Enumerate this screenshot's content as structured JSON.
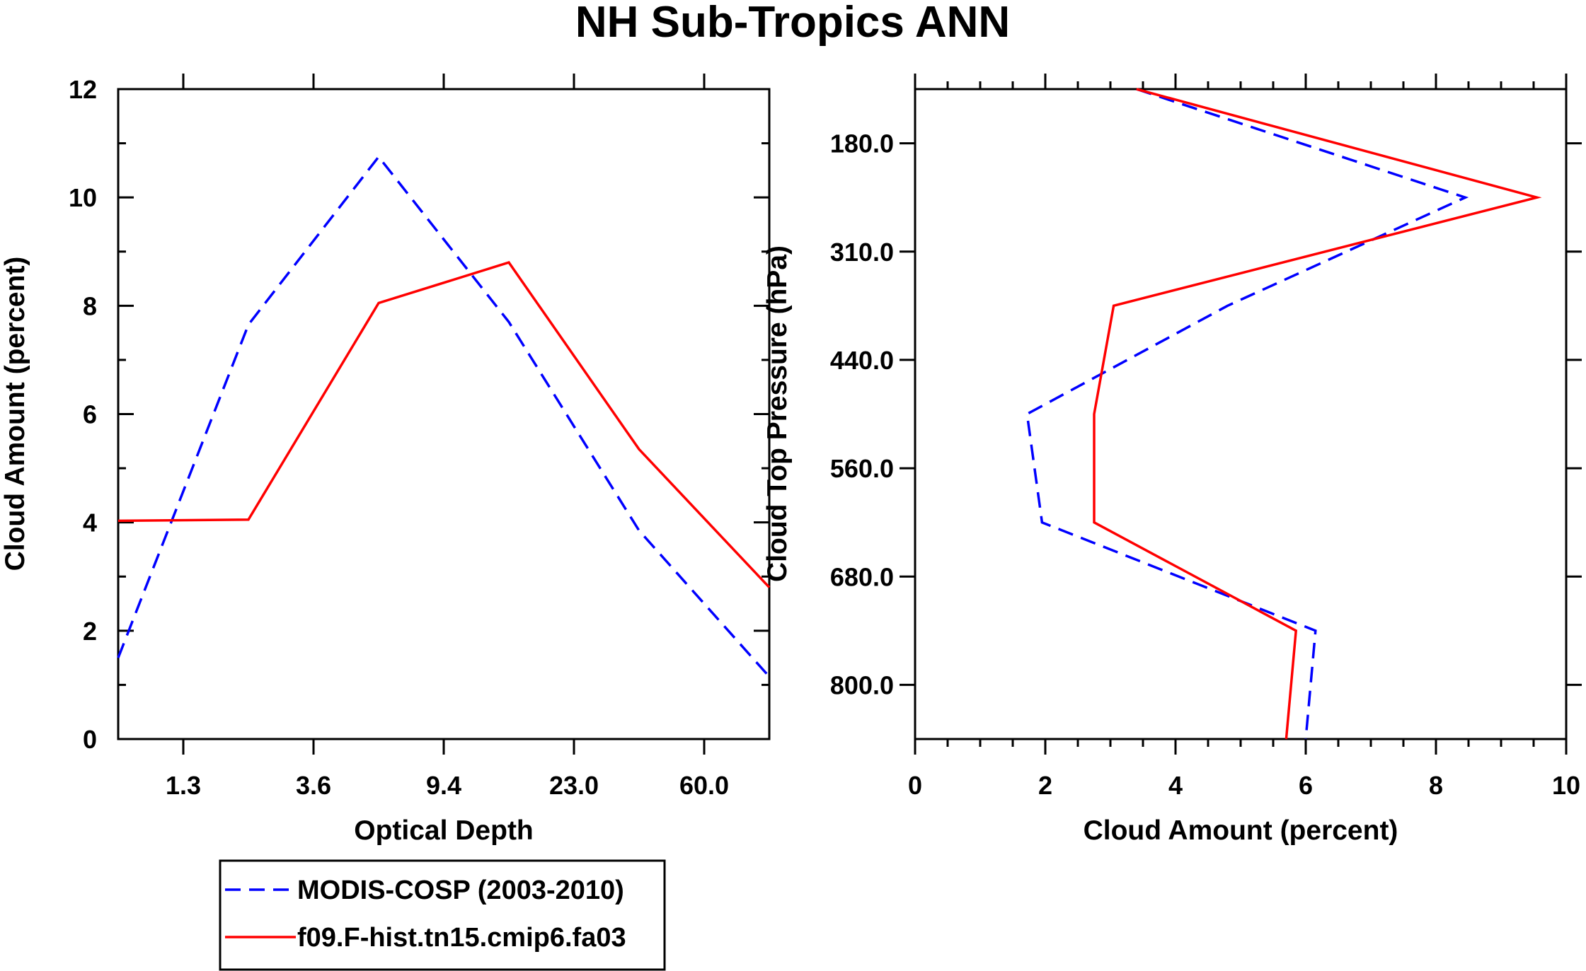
{
  "title": "NH Sub-Tropics ANN",
  "colors": {
    "modis": "#0000ff",
    "model": "#ff0000",
    "axis": "#000000"
  },
  "chart_data": [
    {
      "type": "line",
      "xlabel": "Optical Depth",
      "ylabel": "Cloud Amount (percent)",
      "ylim": [
        0,
        12
      ],
      "yticks": [
        "0",
        "2",
        "4",
        "6",
        "8",
        "10",
        "12"
      ],
      "xlim": [
        0,
        10
      ],
      "xtick_labels": [
        "1.3",
        "3.6",
        "9.4",
        "23.0",
        "60.0"
      ],
      "xtick_positions": [
        1,
        3,
        5,
        7,
        9
      ],
      "x": [
        0,
        2,
        4,
        6,
        8,
        10
      ],
      "series": [
        {
          "name": "MODIS-COSP (2003-2010)",
          "style": "dashed",
          "values": [
            1.5,
            7.65,
            10.75,
            7.7,
            3.85,
            1.15
          ]
        },
        {
          "name": "f09.F-hist.tn15.cmip6.fa03",
          "style": "solid",
          "values": [
            4.03,
            4.05,
            8.05,
            8.8,
            5.35,
            2.8
          ]
        }
      ]
    },
    {
      "type": "line",
      "xlabel": "Cloud Amount (percent)",
      "ylabel": "Cloud Top Pressure (hPa)",
      "xlim": [
        0,
        10
      ],
      "xticks": [
        "0",
        "2",
        "4",
        "6",
        "8",
        "10"
      ],
      "ylim": [
        0,
        12
      ],
      "ytick_labels": [
        "180.0",
        "310.0",
        "440.0",
        "560.0",
        "680.0",
        "800.0"
      ],
      "ytick_positions": [
        1,
        3,
        5,
        7,
        9,
        11
      ],
      "levels": [
        0,
        2,
        4,
        6,
        8,
        10,
        12
      ],
      "series": [
        {
          "name": "MODIS-COSP (2003-2010)",
          "style": "dashed",
          "values": [
            3.4,
            8.45,
            4.8,
            1.72,
            1.95,
            6.15,
            6.0
          ]
        },
        {
          "name": "f09.F-hist.tn15.cmip6.fa03",
          "style": "solid",
          "values": [
            3.4,
            9.55,
            3.05,
            2.75,
            2.75,
            5.85,
            5.7
          ]
        }
      ]
    }
  ],
  "legend": [
    {
      "label": "MODIS-COSP (2003-2010)",
      "style": "dashed"
    },
    {
      "label": "f09.F-hist.tn15.cmip6.fa03",
      "style": "solid"
    }
  ]
}
